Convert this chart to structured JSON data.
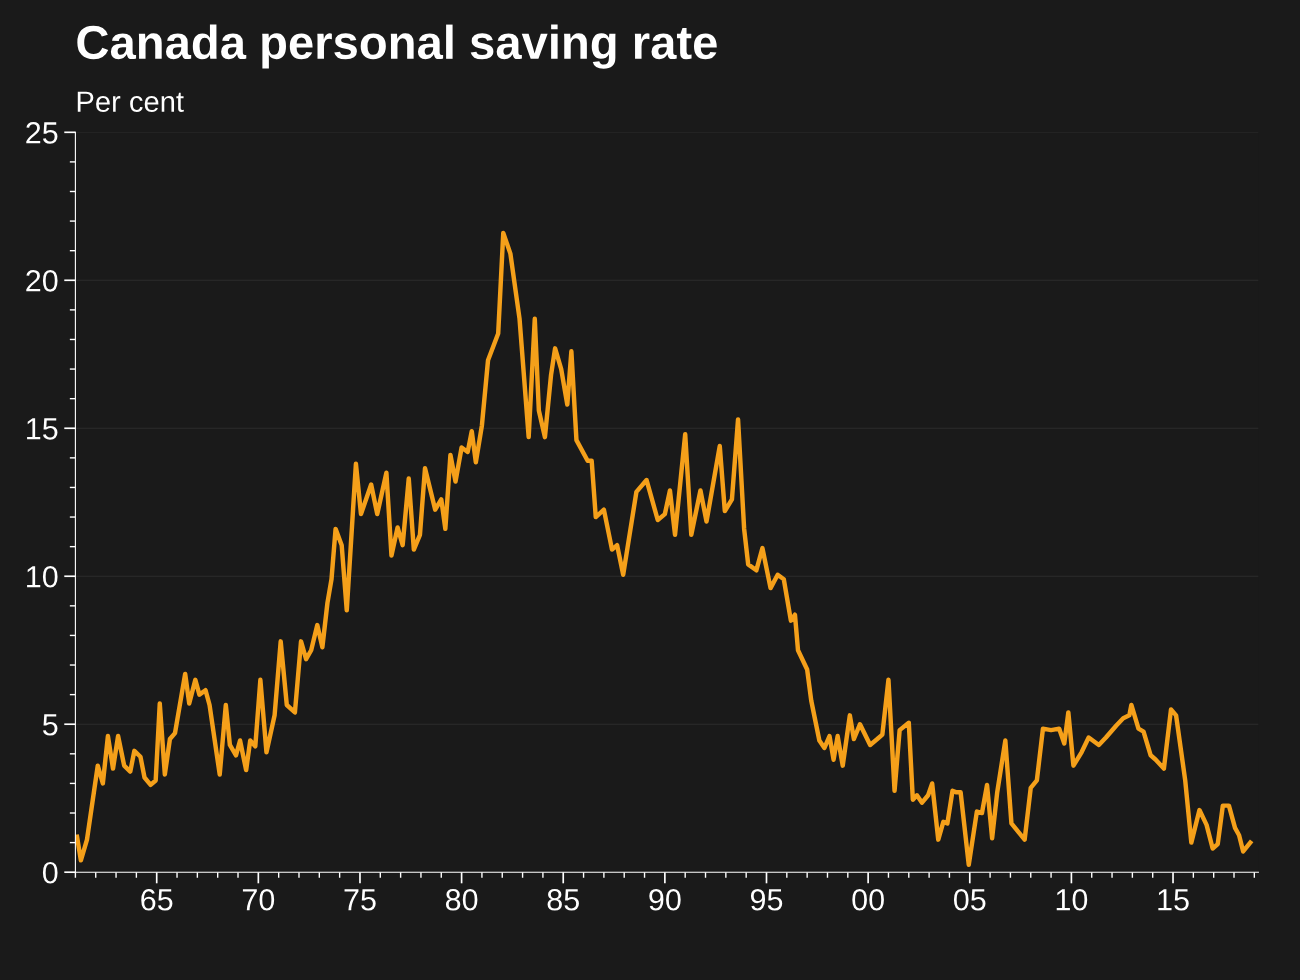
{
  "chart_data": {
    "type": "line",
    "title": "Canada personal saving rate",
    "ylabel": "Per cent",
    "xlim": [
      1961,
      2019.2
    ],
    "ylim": [
      0,
      25
    ],
    "xticks": [
      {
        "value": 1965,
        "label": "65"
      },
      {
        "value": 1970,
        "label": "70"
      },
      {
        "value": 1975,
        "label": "75"
      },
      {
        "value": 1980,
        "label": "80"
      },
      {
        "value": 1985,
        "label": "85"
      },
      {
        "value": 1990,
        "label": "90"
      },
      {
        "value": 1995,
        "label": "95"
      },
      {
        "value": 2000,
        "label": "00"
      },
      {
        "value": 2005,
        "label": "05"
      },
      {
        "value": 2010,
        "label": "10"
      },
      {
        "value": 2015,
        "label": "15"
      }
    ],
    "yticks": [
      0,
      5,
      10,
      15,
      20,
      25
    ],
    "grid": "y",
    "legend": false,
    "marker": "none",
    "line_style": "solid",
    "series": [
      {
        "color": "#f5a01a",
        "x": [
          1961.08,
          1961.27,
          1961.57,
          1962.1,
          1962.35,
          1962.6,
          1962.85,
          1963.1,
          1963.4,
          1963.7,
          1963.9,
          1964.2,
          1964.4,
          1964.7,
          1964.95,
          1965.15,
          1965.4,
          1965.65,
          1965.9,
          1966.4,
          1966.6,
          1966.9,
          1967.1,
          1967.4,
          1967.6,
          1968.1,
          1968.4,
          1968.6,
          1968.9,
          1969.1,
          1969.4,
          1969.6,
          1969.85,
          1970.1,
          1970.4,
          1970.8,
          1971.1,
          1971.4,
          1971.8,
          1972.1,
          1972.35,
          1972.6,
          1972.9,
          1973.15,
          1973.4,
          1973.6,
          1973.8,
          1974.1,
          1974.35,
          1974.8,
          1975.05,
          1975.55,
          1975.85,
          1976.3,
          1976.55,
          1976.85,
          1977.1,
          1977.4,
          1977.65,
          1977.95,
          1978.2,
          1978.7,
          1979.0,
          1979.2,
          1979.45,
          1979.7,
          1980.0,
          1980.3,
          1980.5,
          1980.7,
          1981.0,
          1981.3,
          1981.8,
          1982.05,
          1982.4,
          1982.85,
          1983.3,
          1983.6,
          1983.8,
          1984.1,
          1984.4,
          1984.6,
          1984.9,
          1985.2,
          1985.4,
          1985.65,
          1986.2,
          1986.4,
          1986.6,
          1987.0,
          1987.4,
          1987.65,
          1987.95,
          1988.6,
          1989.1,
          1989.65,
          1990.0,
          1990.25,
          1990.5,
          1991.0,
          1991.3,
          1991.75,
          1992.05,
          1992.7,
          1992.95,
          1993.3,
          1993.6,
          1993.9,
          1994.1,
          1994.5,
          1994.8,
          1995.2,
          1995.55,
          1995.85,
          1996.2,
          1996.4,
          1996.55,
          1997.0,
          1997.2,
          1997.6,
          1997.85,
          1998.1,
          1998.3,
          1998.5,
          1998.75,
          1999.1,
          1999.3,
          1999.6,
          2000.1,
          2000.45,
          2000.7,
          2001.0,
          2001.3,
          2001.55,
          2002.0,
          2002.2,
          2002.4,
          2002.65,
          2002.95,
          2003.15,
          2003.45,
          2003.7,
          2003.9,
          2004.15,
          2004.35,
          2004.55,
          2004.95,
          2005.35,
          2005.6,
          2005.85,
          2006.1,
          2006.35,
          2006.75,
          2007.05,
          2007.7,
          2008.0,
          2008.3,
          2008.6,
          2009.0,
          2009.4,
          2009.65,
          2009.85,
          2010.1,
          2010.5,
          2010.85,
          2011.35,
          2011.7,
          2012.2,
          2012.55,
          2012.85,
          2012.95,
          2013.3,
          2013.55,
          2013.9,
          2014.15,
          2014.55,
          2014.9,
          2015.15,
          2015.6,
          2015.9,
          2016.3,
          2016.65,
          2016.95,
          2017.2,
          2017.45,
          2017.75,
          2018.05,
          2018.25,
          2018.45,
          2018.8
        ],
        "values": [
          1.2,
          0.4,
          1.1,
          3.6,
          3.0,
          4.6,
          3.5,
          4.6,
          3.6,
          3.4,
          4.1,
          3.9,
          3.2,
          2.95,
          3.1,
          5.7,
          3.3,
          4.5,
          4.7,
          6.7,
          5.7,
          6.5,
          6.0,
          6.15,
          5.65,
          3.3,
          5.65,
          4.3,
          3.95,
          4.45,
          3.45,
          4.45,
          4.25,
          6.5,
          4.05,
          5.3,
          7.8,
          5.65,
          5.4,
          7.8,
          7.2,
          7.5,
          8.35,
          7.6,
          9.1,
          9.9,
          11.6,
          11.05,
          8.85,
          13.8,
          12.1,
          13.1,
          12.1,
          13.5,
          10.7,
          11.65,
          11.05,
          13.3,
          10.9,
          11.4,
          13.65,
          12.25,
          12.6,
          11.6,
          14.1,
          13.2,
          14.35,
          14.2,
          14.9,
          13.85,
          15.1,
          17.3,
          18.2,
          21.6,
          20.9,
          18.7,
          14.7,
          18.7,
          15.6,
          14.7,
          16.8,
          17.7,
          17.0,
          15.8,
          17.6,
          14.6,
          13.9,
          13.9,
          12.0,
          12.25,
          10.9,
          11.05,
          10.05,
          12.85,
          13.25,
          11.9,
          12.1,
          12.9,
          11.4,
          14.8,
          11.4,
          12.9,
          11.85,
          14.4,
          12.2,
          12.6,
          15.3,
          11.6,
          10.4,
          10.2,
          10.95,
          9.6,
          10.05,
          9.9,
          8.5,
          8.7,
          7.5,
          6.85,
          5.8,
          4.45,
          4.2,
          4.6,
          3.8,
          4.6,
          3.6,
          5.3,
          4.5,
          5.0,
          4.3,
          4.5,
          4.65,
          6.5,
          2.75,
          4.8,
          5.05,
          2.45,
          2.6,
          2.35,
          2.6,
          3.0,
          1.1,
          1.7,
          1.65,
          2.75,
          2.7,
          2.7,
          0.25,
          2.05,
          2.0,
          2.95,
          1.15,
          2.7,
          4.45,
          1.65,
          1.1,
          2.85,
          3.1,
          4.85,
          4.8,
          4.85,
          4.35,
          5.4,
          3.6,
          4.05,
          4.55,
          4.3,
          4.55,
          4.95,
          5.2,
          5.3,
          5.65,
          4.85,
          4.75,
          3.95,
          3.8,
          3.5,
          5.5,
          5.3,
          3.1,
          1.0,
          2.1,
          1.6,
          0.8,
          0.95,
          2.25,
          2.25,
          1.5,
          1.25,
          0.7,
          1.0
        ]
      }
    ]
  }
}
